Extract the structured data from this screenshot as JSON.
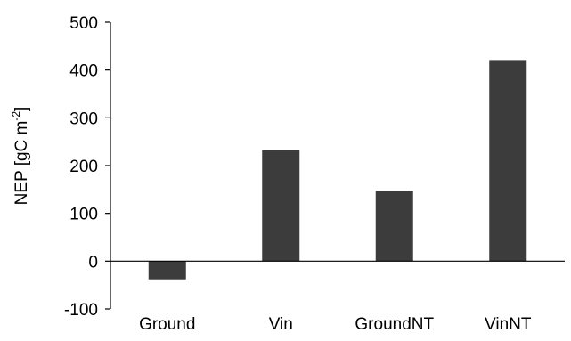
{
  "chart_data": {
    "type": "bar",
    "categories": [
      "Ground",
      "Vin",
      "GroundNT",
      "VinNT"
    ],
    "values": [
      -38,
      233,
      147,
      421
    ],
    "ylabel_main": "NEP [gC m",
    "ylabel_sup": "-2",
    "ylabel_close": "]",
    "ylim": [
      -100,
      500
    ],
    "yticks": [
      -100,
      0,
      100,
      200,
      300,
      400,
      500
    ],
    "grid": false,
    "legend": "none",
    "bar_color": "#3c3c3c",
    "axis_color": "#000000"
  }
}
